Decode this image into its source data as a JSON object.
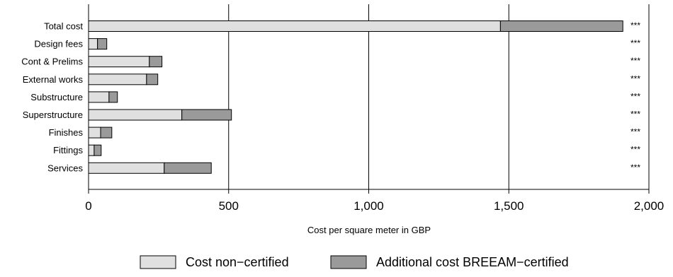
{
  "chart_data": {
    "type": "bar",
    "orientation": "horizontal",
    "stacked": true,
    "categories": [
      "Total cost",
      "Design fees",
      "Cont & Prelims",
      "External works",
      "Substructure",
      "Superstructure",
      "Finishes",
      "Fittings",
      "Services"
    ],
    "series": [
      {
        "name": "Cost non−certified",
        "color": "#e0e0e0",
        "values": [
          1470,
          32,
          217,
          207,
          73,
          333,
          43,
          20,
          270
        ]
      },
      {
        "name": "Additional cost BREEAM−certified",
        "color": "#9a9a9a",
        "values": [
          437,
          33,
          45,
          40,
          30,
          177,
          40,
          25,
          168
        ]
      }
    ],
    "significance": [
      "***",
      "***",
      "***",
      "***",
      "***",
      "***",
      "***",
      "***",
      "***"
    ],
    "xlabel": "Cost per square meter in GBP",
    "ylabel": "",
    "xlim": [
      0,
      2000
    ],
    "xticks": [
      0,
      500,
      1000,
      1500,
      2000
    ],
    "xtick_labels": [
      "0",
      "500",
      "1,000",
      "1,500",
      "2,000"
    ],
    "grid": "vertical",
    "legend": "bottom"
  }
}
